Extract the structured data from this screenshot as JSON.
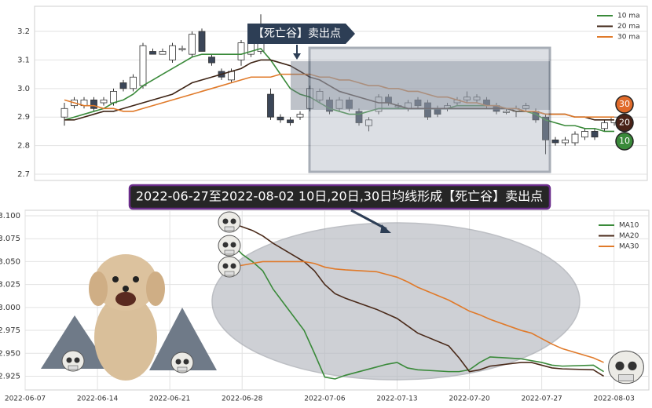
{
  "chart_data": [
    {
      "type": "candlestick",
      "annotation": "【死亡谷】卖出点",
      "open": [
        2.9,
        2.94,
        2.94,
        2.96,
        2.95,
        2.95,
        3.02,
        3.0,
        3.01,
        3.13,
        3.12,
        3.1,
        3.14,
        3.12,
        3.2,
        3.11,
        3.06,
        3.03,
        3.1,
        3.12,
        3.13,
        2.98,
        2.9,
        2.89,
        2.9,
        2.93,
        2.96,
        2.96,
        2.93,
        2.96,
        2.92,
        2.87,
        2.92,
        2.97,
        2.94,
        2.93,
        2.96,
        2.95,
        2.93,
        2.93,
        2.95,
        2.96,
        2.96,
        2.96,
        2.94,
        2.92,
        2.92,
        2.93,
        2.92,
        2.9,
        2.82,
        2.81,
        2.81,
        2.83,
        2.85,
        2.86,
        2.88
      ],
      "high": [
        2.95,
        2.97,
        2.97,
        2.97,
        2.97,
        3.0,
        3.03,
        3.05,
        3.16,
        3.14,
        3.14,
        3.16,
        3.15,
        3.2,
        3.21,
        3.12,
        3.07,
        3.07,
        3.17,
        3.19,
        3.26,
        3.0,
        2.91,
        2.9,
        2.92,
        3.01,
        3.0,
        2.97,
        2.97,
        2.97,
        2.93,
        2.9,
        2.98,
        2.98,
        2.95,
        2.96,
        2.97,
        2.96,
        2.94,
        2.95,
        2.97,
        2.99,
        2.98,
        2.97,
        2.95,
        2.93,
        2.94,
        2.95,
        2.93,
        2.91,
        2.83,
        2.83,
        2.85,
        2.86,
        2.86,
        2.89,
        2.9
      ],
      "low": [
        2.87,
        2.93,
        2.93,
        2.92,
        2.94,
        2.94,
        2.99,
        2.99,
        3.0,
        3.12,
        3.12,
        3.09,
        3.13,
        3.11,
        3.13,
        3.08,
        3.03,
        3.02,
        3.08,
        3.11,
        3.12,
        2.89,
        2.88,
        2.87,
        2.89,
        2.92,
        2.95,
        2.91,
        2.92,
        2.92,
        2.87,
        2.85,
        2.91,
        2.94,
        2.93,
        2.92,
        2.93,
        2.89,
        2.9,
        2.92,
        2.94,
        2.95,
        2.95,
        2.93,
        2.91,
        2.91,
        2.9,
        2.92,
        2.88,
        2.77,
        2.8,
        2.8,
        2.8,
        2.82,
        2.82,
        2.85,
        2.87
      ],
      "close": [
        2.93,
        2.96,
        2.96,
        2.93,
        2.96,
        2.99,
        3.0,
        3.04,
        3.15,
        3.12,
        3.13,
        3.15,
        3.14,
        3.19,
        3.13,
        3.09,
        3.04,
        3.06,
        3.16,
        3.18,
        3.18,
        2.9,
        2.89,
        2.88,
        2.91,
        3.0,
        2.99,
        2.92,
        2.96,
        2.93,
        2.88,
        2.89,
        2.97,
        2.95,
        2.94,
        2.95,
        2.94,
        2.9,
        2.91,
        2.94,
        2.96,
        2.97,
        2.97,
        2.94,
        2.92,
        2.92,
        2.93,
        2.94,
        2.89,
        2.82,
        2.81,
        2.82,
        2.84,
        2.85,
        2.83,
        2.88,
        2.9
      ],
      "series": [
        {
          "name": "10 ma",
          "color": "#3a8a3a",
          "values": [
            2.89,
            2.9,
            2.91,
            2.92,
            2.93,
            2.95,
            2.96,
            2.98,
            3.01,
            3.03,
            3.05,
            3.07,
            3.09,
            3.11,
            3.12,
            3.12,
            3.12,
            3.12,
            3.12,
            3.13,
            3.14,
            3.1,
            3.05,
            3.0,
            2.98,
            2.97,
            2.95,
            2.93,
            2.92,
            2.91,
            2.91,
            2.92,
            2.93,
            2.93,
            2.93,
            2.93,
            2.93,
            2.93,
            2.93,
            2.93,
            2.94,
            2.94,
            2.94,
            2.94,
            2.94,
            2.93,
            2.92,
            2.92,
            2.91,
            2.89,
            2.88,
            2.87,
            2.87,
            2.86,
            2.86,
            2.85,
            2.85
          ]
        },
        {
          "name": "20 ma",
          "color": "#3d2314",
          "values": [
            2.89,
            2.89,
            2.9,
            2.91,
            2.92,
            2.92,
            2.93,
            2.94,
            2.95,
            2.96,
            2.97,
            2.98,
            3.0,
            3.02,
            3.03,
            3.04,
            3.05,
            3.06,
            3.07,
            3.09,
            3.1,
            3.1,
            3.09,
            3.08,
            3.06,
            3.04,
            3.03,
            3.01,
            2.99,
            2.98,
            2.97,
            2.96,
            2.95,
            2.95,
            2.94,
            2.93,
            2.93,
            2.93,
            2.93,
            2.93,
            2.93,
            2.93,
            2.93,
            2.93,
            2.93,
            2.93,
            2.92,
            2.92,
            2.92,
            2.91,
            2.91,
            2.91,
            2.9,
            2.9,
            2.89,
            2.89,
            2.89
          ]
        },
        {
          "name": "30 ma",
          "color": "#e07a2a",
          "values": [
            2.96,
            2.95,
            2.94,
            2.94,
            2.93,
            2.93,
            2.92,
            2.92,
            2.93,
            2.94,
            2.95,
            2.96,
            2.97,
            2.98,
            2.99,
            3.0,
            3.01,
            3.02,
            3.03,
            3.04,
            3.04,
            3.04,
            3.05,
            3.05,
            3.05,
            3.05,
            3.04,
            3.04,
            3.03,
            3.03,
            3.02,
            3.01,
            3.01,
            3.0,
            3.0,
            2.99,
            2.99,
            2.98,
            2.97,
            2.97,
            2.96,
            2.95,
            2.95,
            2.94,
            2.94,
            2.93,
            2.93,
            2.92,
            2.92,
            2.91,
            2.91,
            2.91,
            2.9,
            2.9,
            2.9,
            2.9,
            2.9
          ]
        }
      ],
      "badges": [
        {
          "label": "30",
          "color": "#e06a2a"
        },
        {
          "label": "20",
          "color": "#4a2218"
        },
        {
          "label": "10",
          "color": "#3a8a3a"
        }
      ],
      "ylim": [
        2.678,
        3.288
      ],
      "yticks": [
        2.7,
        2.8,
        2.9,
        {
          "value": 3,
          "label": "3.0"
        },
        3.1,
        3.2
      ],
      "grid": true,
      "legend": "upper right"
    },
    {
      "type": "line",
      "title": "2022-06-27至2022-08-02 10日,20日,30日均线形成【死亡谷】卖出点",
      "x": [
        "2022-06-27",
        "2022-06-28",
        "2022-06-29",
        "2022-06-30",
        "2022-07-01",
        "2022-07-04",
        "2022-07-05",
        "2022-07-06",
        "2022-07-07",
        "2022-07-08",
        "2022-07-11",
        "2022-07-12",
        "2022-07-13",
        "2022-07-14",
        "2022-07-15",
        "2022-07-18",
        "2022-07-19",
        "2022-07-20",
        "2022-07-21",
        "2022-07-22",
        "2022-07-25",
        "2022-07-26",
        "2022-07-27",
        "2022-07-28",
        "2022-07-29",
        "2022-08-01",
        "2022-08-02"
      ],
      "series": [
        {
          "name": "MA10",
          "color": "#3a8a3a",
          "values": [
            3.07,
            3.058,
            3.05,
            3.04,
            3.02,
            2.975,
            2.95,
            2.924,
            2.922,
            2.926,
            2.935,
            2.938,
            2.94,
            2.934,
            2.932,
            2.93,
            2.93,
            2.932,
            2.94,
            2.946,
            2.944,
            2.942,
            2.94,
            2.937,
            2.936,
            2.937,
            2.93
          ]
        },
        {
          "name": "MA20",
          "color": "#4a2a1a",
          "values": [
            3.092,
            3.088,
            3.084,
            3.078,
            3.07,
            3.05,
            3.04,
            3.025,
            3.015,
            3.01,
            2.998,
            2.993,
            2.988,
            2.98,
            2.972,
            2.958,
            2.945,
            2.93,
            2.932,
            2.936,
            2.94,
            2.94,
            2.937,
            2.934,
            2.933,
            2.932,
            2.925
          ]
        },
        {
          "name": "MA30",
          "color": "#e07a2a",
          "values": [
            3.044,
            3.046,
            3.048,
            3.05,
            3.05,
            3.05,
            3.048,
            3.044,
            3.042,
            3.041,
            3.039,
            3.036,
            3.033,
            3.028,
            3.022,
            3.008,
            3.002,
            2.996,
            2.992,
            2.987,
            2.975,
            2.972,
            2.966,
            2.96,
            2.955,
            2.945,
            2.94
          ]
        }
      ],
      "xlim": [
        "2022-06-07",
        "2022-08-05"
      ],
      "xticks": [
        "2022-06-07",
        "2022-06-14",
        "2022-06-21",
        "2022-06-28",
        "2022-07-06",
        "2022-07-13",
        "2022-07-20",
        "2022-07-27",
        "2022-08-03"
      ],
      "ylim": [
        2.91,
        3.106
      ],
      "yticks": [
        2.925,
        {
          "value": 2.95,
          "label": "2.950"
        },
        2.975,
        {
          "value": 3,
          "label": "3.000"
        },
        3.025,
        {
          "value": 3.05,
          "label": "3.050"
        },
        3.075,
        {
          "value": 3.1,
          "label": "3.100"
        }
      ],
      "grid": true,
      "legend": "upper right"
    }
  ]
}
